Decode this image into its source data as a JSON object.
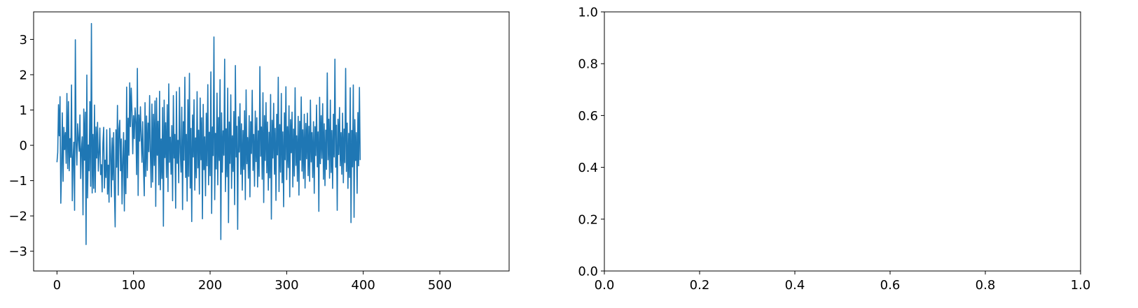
{
  "chart_data": [
    {
      "type": "line",
      "title": "",
      "xlabel": "",
      "ylabel": "",
      "xlim": [
        -30.5,
        590.5
      ],
      "ylim": [
        -3.56,
        3.78
      ],
      "xticks": [
        0,
        100,
        200,
        300,
        400,
        500
      ],
      "xtick_labels": [
        "0",
        "100",
        "200",
        "300",
        "400",
        "500"
      ],
      "yticks": [
        -3,
        -2,
        -1,
        0,
        1,
        2,
        3
      ],
      "ytick_labels": [
        "−3",
        "−2",
        "−1",
        "0",
        "1",
        "2",
        "3"
      ],
      "grid": false,
      "legend": "none",
      "series": [
        {
          "color": "#1f77b4",
          "x_start": 0,
          "x_step": 1,
          "values": [
            -0.48,
            -0.2,
            1.15,
            0.27,
            1.38,
            -1.64,
            -0.66,
            0.92,
            -1.02,
            0.51,
            -0.12,
            0.36,
            -0.51,
            1.47,
            -0.66,
            1.24,
            -0.72,
            0.19,
            -0.34,
            1.71,
            -1.57,
            -0.39,
            0.09,
            -1.84,
            2.99,
            0.07,
            -0.56,
            0.61,
            0.18,
            -0.17,
            0.86,
            -0.94,
            -0.11,
            0.24,
            -1.97,
            1.03,
            -0.42,
            0.94,
            -2.81,
            1.99,
            -1.49,
            0.01,
            -0.72,
            1.24,
            -1.16,
            3.45,
            -1.35,
            0.31,
            -1.22,
            1.14,
            -1.33,
            0.52,
            -0.36,
            0.65,
            -0.73,
            -0.24,
            0.49,
            -0.83,
            -0.55,
            -1.32,
            0.06,
            0.51,
            -1.21,
            -0.42,
            -0.91,
            0.44,
            -1.38,
            -0.56,
            -1.61,
            0.48,
            -0.24,
            -1.46,
            0.21,
            -0.98,
            0.36,
            -1.28,
            -2.31,
            0.44,
            -0.62,
            1.13,
            -1.41,
            0.47,
            0.71,
            -0.72,
            0.18,
            -1.66,
            -0.41,
            0.36,
            -1.86,
            0.14,
            -1.37,
            1.65,
            -0.92,
            0.77,
            -0.28,
            1.77,
            0.53,
            1.62,
            0.93,
            -0.24,
            0.84,
            0.19,
            1.06,
            0.66,
            -0.83,
            2.18,
            -1.42,
            0.86,
            0.12,
            1.09,
            0.23,
            -0.48,
            0.67,
            -0.62,
            -1.43,
            1.21,
            -0.88,
            0.83,
            -0.71,
            0.63,
            -0.18,
            1.41,
            -0.24,
            -1.19,
            1.17,
            -1.04,
            0.88,
            -0.57,
            1.26,
            -1.73,
            1.34,
            -0.28,
            0.68,
            -1.12,
            1.53,
            -1.26,
            0.18,
            -0.94,
            1.07,
            -2.29,
            1.28,
            -0.35,
            0.64,
            -0.91,
            1.15,
            -1.31,
            1.74,
            -0.48,
            0.23,
            -0.82,
            0.56,
            -1.57,
            1.41,
            -0.36,
            0.31,
            -1.78,
            1.52,
            -0.51,
            0.14,
            -1.06,
            1.64,
            -0.19,
            -0.76,
            1.08,
            -1.82,
            0.67,
            -0.42,
            1.93,
            -0.91,
            0.31,
            -1.58,
            1.29,
            -0.88,
            2.04,
            -1.21,
            0.48,
            -2.16,
            0.86,
            -0.33,
            1.29,
            -1.27,
            0.21,
            -0.92,
            1.52,
            -0.64,
            0.43,
            -1.38,
            1.34,
            -0.41,
            0.78,
            -2.08,
            1.16,
            -0.69,
            0.24,
            -1.43,
            0.91,
            -0.58,
            1.72,
            -1.12,
            0.37,
            -0.86,
            2.08,
            -1.93,
            0.52,
            -0.29,
            3.07,
            -1.54,
            0.34,
            -0.67,
            1.48,
            -1.12,
            0.79,
            -0.43,
            1.86,
            -2.67,
            0.92,
            -0.76,
            0.41,
            -0.28,
            2.44,
            -1.31,
            0.47,
            -0.89,
            1.62,
            -2.19,
            0.66,
            -0.51,
            1.43,
            -1.22,
            0.27,
            -0.74,
            0.96,
            -1.68,
            2.26,
            -0.33,
            0.54,
            -2.38,
            0.81,
            -0.19,
            1.18,
            -0.82,
            0.61,
            -1.27,
            0.42,
            -0.68,
            0.98,
            -1.54,
            1.57,
            -0.52,
            0.22,
            -0.93,
            0.84,
            -1.46,
            0.67,
            -0.23,
            1.56,
            -0.71,
            0.31,
            -1.16,
            0.97,
            -0.46,
            0.78,
            -1.18,
            0.41,
            -0.88,
            2.23,
            -0.31,
            0.52,
            -0.96,
            1.49,
            -1.62,
            0.84,
            -0.43,
            1.21,
            -0.78,
            0.66,
            -1.27,
            0.37,
            -0.92,
            1.44,
            -2.09,
            0.71,
            -0.36,
            1.19,
            -0.82,
            0.48,
            -1.56,
            0.88,
            -0.27,
            1.93,
            -1.31,
            0.59,
            -0.76,
            1.47,
            -1.06,
            0.38,
            -1.74,
            0.92,
            -0.41,
            1.66,
            -0.97,
            0.53,
            -0.63,
            1.12,
            -1.46,
            0.73,
            -0.21,
            0.94,
            -1.18,
            0.46,
            -0.87,
            1.63,
            -0.57,
            0.27,
            -1.02,
            0.82,
            -1.41,
            0.68,
            -0.42,
            1.37,
            -0.73,
            0.44,
            -0.94,
            0.88,
            -1.21,
            0.62,
            -0.38,
            0.91,
            -0.86,
            0.54,
            -1.02,
            1.28,
            -0.47,
            0.36,
            -0.91,
            0.67,
            -1.36,
            0.53,
            -0.29,
            1.14,
            -0.61,
            0.38,
            -1.87,
            1.36,
            -0.52,
            0.84,
            -0.37,
            1.18,
            -0.96,
            0.61,
            -1.14,
            0.43,
            -0.68,
            2.05,
            -0.41,
            0.74,
            -0.93,
            1.28,
            -0.77,
            0.42,
            -1.22,
            0.88,
            -0.33,
            2.44,
            -0.62,
            0.57,
            -1.84,
            0.74,
            -0.26,
            1.07,
            -0.58,
            0.36,
            -0.82,
            0.91,
            -1.06,
            0.46,
            -0.49,
            2.18,
            -0.74,
            0.63,
            -1.22,
            0.34,
            -0.91,
            1.63,
            -2.19,
            0.42,
            -0.61,
            1.71,
            -2.04,
            0.73,
            -0.43,
            0.36,
            -1.36,
            0.93,
            -0.58,
            1.64,
            -0.42
          ]
        }
      ]
    },
    {
      "type": "line",
      "title": "",
      "xlabel": "",
      "ylabel": "",
      "xlim": [
        0,
        1
      ],
      "ylim": [
        0,
        1
      ],
      "xticks": [
        0.0,
        0.2,
        0.4,
        0.6,
        0.8,
        1.0
      ],
      "xtick_labels": [
        "0.0",
        "0.2",
        "0.4",
        "0.6",
        "0.8",
        "1.0"
      ],
      "yticks": [
        0.0,
        0.2,
        0.4,
        0.6,
        0.8,
        1.0
      ],
      "ytick_labels": [
        "0.0",
        "0.2",
        "0.4",
        "0.6",
        "0.8",
        "1.0"
      ],
      "grid": false,
      "legend": "none",
      "series": []
    }
  ]
}
